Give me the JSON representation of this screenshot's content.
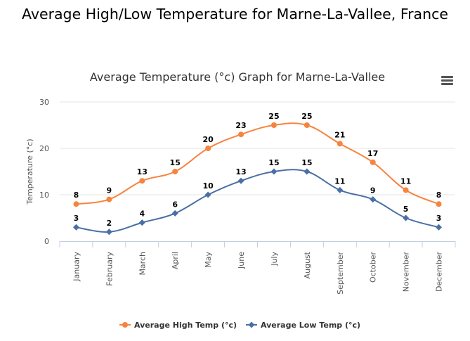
{
  "page": {
    "title": "Average High/Low Temperature for Marne-La-Vallee, France"
  },
  "menu": {
    "icon": "hamburger-menu-icon"
  },
  "chart_data": {
    "type": "line",
    "title": "Average Temperature (°c) Graph for Marne-La-Vallee",
    "xlabel": "",
    "ylabel": "Temperature (°c)",
    "ylim": [
      0,
      30
    ],
    "yticks": [
      0,
      10,
      20,
      30
    ],
    "categories": [
      "January",
      "February",
      "March",
      "April",
      "May",
      "June",
      "July",
      "August",
      "September",
      "October",
      "November",
      "December"
    ],
    "series": [
      {
        "name": "Average High Temp (°c)",
        "color": "#f7843e",
        "marker": "circle",
        "values": [
          8,
          9,
          13,
          15,
          20,
          23,
          25,
          25,
          21,
          17,
          11,
          8
        ]
      },
      {
        "name": "Average Low Temp (°c)",
        "color": "#4a6fa5",
        "marker": "diamond",
        "values": [
          3,
          2,
          4,
          6,
          10,
          13,
          15,
          15,
          11,
          9,
          5,
          3
        ]
      }
    ],
    "legend": "bottom-center",
    "grid": true
  }
}
